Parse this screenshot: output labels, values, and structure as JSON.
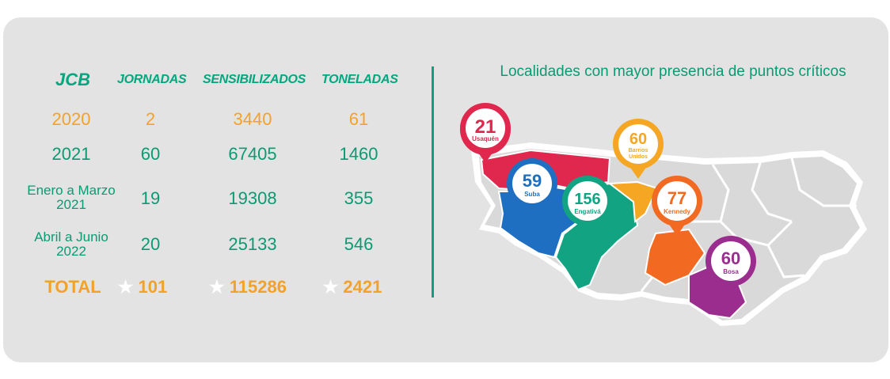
{
  "table": {
    "headers": [
      "JCB",
      "JORNADAS",
      "SENSIBILIZADOS",
      "TONELADAS"
    ],
    "rows": [
      {
        "label": "2020",
        "jornadas": "2",
        "sensibilizados": "3440",
        "toneladas": "61"
      },
      {
        "label": "2021",
        "jornadas": "60",
        "sensibilizados": "67405",
        "toneladas": "1460"
      },
      {
        "label_line1": "Enero a Marzo",
        "label_line2": "2021",
        "jornadas": "19",
        "sensibilizados": "19308",
        "toneladas": "355"
      },
      {
        "label_line1": "Abril a Junio",
        "label_line2": "2022",
        "jornadas": "20",
        "sensibilizados": "25133",
        "toneladas": "546"
      }
    ],
    "total": {
      "label": "TOTAL",
      "jornadas": "101",
      "sensibilizados": "115286",
      "toneladas": "2421"
    }
  },
  "map": {
    "title": "Localidades con mayor presencia de puntos críticos",
    "pins": [
      {
        "value": "21",
        "name": "Usaquén",
        "color": "#e0284f"
      },
      {
        "value": "59",
        "name": "Suba",
        "color": "#1e6fc2"
      },
      {
        "value": "156",
        "name": "Engativá",
        "color": "#12a383"
      },
      {
        "value": "60",
        "name_line1": "Barrios",
        "name_line2": "Unidos",
        "color": "#f5a623"
      },
      {
        "value": "77",
        "name": "Kennedy",
        "color": "#f26a22"
      },
      {
        "value": "60",
        "name": "Bosa",
        "color": "#9b2d8f"
      }
    ]
  },
  "colors": {
    "green": "#0b9a72",
    "orange": "#f2a22c",
    "background": "#e3e3e3"
  }
}
